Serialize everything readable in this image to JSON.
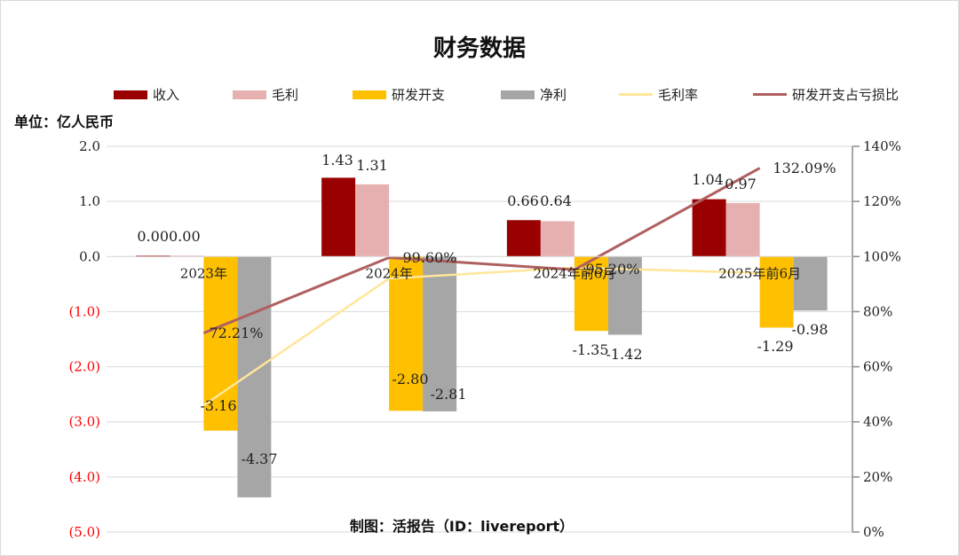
{
  "title": "财务数据",
  "unit_label": "单位：亿人民币",
  "credit": "制图：活报告（ID：livereport）",
  "legend": [
    {
      "label": "收入",
      "kind": "bar",
      "color": "#990000"
    },
    {
      "label": "毛利",
      "kind": "bar",
      "color": "#e6b0b0"
    },
    {
      "label": "研发开支",
      "kind": "bar",
      "color": "#ffc000"
    },
    {
      "label": "净利",
      "kind": "bar",
      "color": "#a6a6a6"
    },
    {
      "label": "毛利率",
      "kind": "line",
      "color": "#ffe699"
    },
    {
      "label": "研发开支占亏损比",
      "kind": "line",
      "color": "#b05f5f"
    }
  ],
  "chart_data": {
    "type": "bar",
    "categories": [
      "2023年",
      "2024年",
      "2024年前6月",
      "2025年前6月"
    ],
    "series": [
      {
        "name": "收入",
        "type": "bar",
        "axis": "left",
        "color": "#990000",
        "values": [
          0.0,
          1.43,
          0.66,
          1.04
        ],
        "labels": [
          "0.00",
          "1.43",
          "0.66",
          "1.04"
        ]
      },
      {
        "name": "毛利",
        "type": "bar",
        "axis": "left",
        "color": "#e6b0b0",
        "values": [
          0.0,
          1.31,
          0.64,
          0.97
        ],
        "labels": [
          "0.00",
          "1.31",
          "0.64",
          "0.97"
        ]
      },
      {
        "name": "研发开支",
        "type": "bar",
        "axis": "left",
        "color": "#ffc000",
        "values": [
          -3.16,
          -2.8,
          -1.35,
          -1.29
        ],
        "labels": [
          "-3.16",
          "-2.80",
          "-1.35",
          "-1.29"
        ]
      },
      {
        "name": "净利",
        "type": "bar",
        "axis": "left",
        "color": "#a6a6a6",
        "values": [
          -4.37,
          -2.81,
          -1.42,
          -0.98
        ],
        "labels": [
          "-4.37",
          "-2.81",
          "-1.42",
          "-0.98"
        ]
      },
      {
        "name": "毛利率",
        "type": "line",
        "axis": "right",
        "color": "#ffe699",
        "values": [
          46,
          92,
          96,
          94
        ],
        "labels": [
          "",
          "",
          "",
          ""
        ]
      },
      {
        "name": "研发开支占亏损比",
        "type": "line",
        "axis": "right",
        "color": "#b05f5f",
        "values": [
          72.21,
          99.6,
          95.2,
          132.09
        ],
        "labels": [
          "72.21%",
          "99.60%",
          "95.20%",
          "132.09%"
        ]
      }
    ],
    "left_axis": {
      "ylim": [
        -5,
        2
      ],
      "ticks": [
        2,
        1,
        0,
        -1,
        -2,
        -3,
        -4,
        -5
      ],
      "tick_labels": [
        "2.0",
        "1.0",
        "0.0",
        "(1.0)",
        "(2.0)",
        "(3.0)",
        "(4.0)",
        "(5.0)"
      ],
      "negative_color": "#ff0000"
    },
    "right_axis": {
      "ylim": [
        0,
        140
      ],
      "ticks": [
        140,
        120,
        100,
        80,
        60,
        40,
        20,
        0
      ],
      "tick_labels": [
        "140%",
        "120%",
        "100%",
        "80%",
        "60%",
        "40%",
        "20%",
        "0%"
      ]
    },
    "grid": true,
    "legend_position": "top"
  }
}
